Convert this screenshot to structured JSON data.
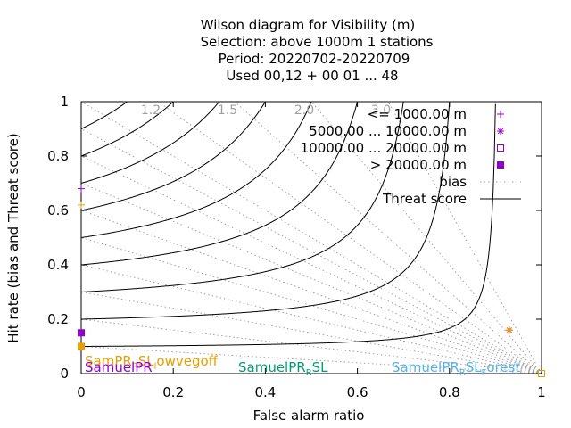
{
  "chart_data": {
    "type": "scatter",
    "title_lines": [
      "Wilson diagram  for Visibility (m)",
      "Selection: above 1000m      1 stations",
      "Period: 20220702-20220709",
      "Used  00,12  + 00 01 ... 48"
    ],
    "xlabel": "False alarm ratio",
    "ylabel": "Hit rate (bias and Threat score)",
    "xlim": [
      0,
      1
    ],
    "ylim": [
      0,
      1
    ],
    "x_ticks": [
      0,
      0.2,
      0.4,
      0.6,
      0.8,
      1
    ],
    "y_ticks": [
      0,
      0.2,
      0.4,
      0.6,
      0.8,
      1
    ],
    "x_tick_labels": [
      "0",
      "0.2",
      "0.4",
      "0.6",
      "0.8",
      "1"
    ],
    "y_tick_labels": [
      "0",
      "0.2",
      "0.4",
      "0.6",
      "0.8",
      "1"
    ],
    "bias_lines": [
      0.1,
      0.2,
      0.3,
      0.4,
      0.5,
      0.6,
      0.7,
      0.8,
      0.9,
      1.0,
      1.2,
      1.5,
      2.0,
      3.0
    ],
    "bias_labels": [
      {
        "value": 1.2,
        "text": "1.2"
      },
      {
        "value": 1.5,
        "text": "1.5"
      },
      {
        "value": 2.0,
        "text": "2.0"
      },
      {
        "value": 3.0,
        "text": "3.0"
      }
    ],
    "threat_score_lines": [
      0.1,
      0.2,
      0.3,
      0.4,
      0.5,
      0.6,
      0.7,
      0.8,
      0.9
    ],
    "legend_position": "top-right",
    "legend": [
      {
        "label": "<= 1000.00 m",
        "marker": "plus",
        "color": "#9400d3"
      },
      {
        "label": "5000.00 ... 10000.00 m",
        "marker": "star",
        "color": "#9400d3"
      },
      {
        "label": "10000.00 ... 20000.00 m",
        "marker": "open-square",
        "color": "#9400d3"
      },
      {
        "label": "> 20000.00 m",
        "marker": "filled-square",
        "color": "#9400d3"
      },
      {
        "label": "bias",
        "marker": "dotted-line",
        "color": "#a0a0a0"
      },
      {
        "label": "Threat score",
        "marker": "solid-line",
        "color": "#000000"
      }
    ],
    "series": [
      {
        "color": "#9400d3",
        "points": [
          {
            "x": 0.0,
            "y": 0.68,
            "marker": "plus"
          },
          {
            "x": 0.0,
            "y": 0.15,
            "marker": "filled-square"
          },
          {
            "x": 0.93,
            "y": 0.16,
            "marker": "star"
          },
          {
            "x": 1.0,
            "y": 0.0,
            "marker": "open-square"
          }
        ]
      },
      {
        "color": "#e69f00",
        "points": [
          {
            "x": 0.0,
            "y": 0.62,
            "marker": "plus"
          },
          {
            "x": 0.0,
            "y": 0.1,
            "marker": "filled-square"
          },
          {
            "x": 0.93,
            "y": 0.16,
            "marker": "star"
          },
          {
            "x": 1.0,
            "y": 0.0,
            "marker": "open-square"
          }
        ]
      }
    ],
    "annotations": [
      {
        "text": "SamPR",
        "sub": "R",
        "text2": "SL",
        "sub2": "l",
        "text3": "owvegoff",
        "color": "#e69f00"
      },
      {
        "text": "SamuelPR",
        "color": "#9400d3"
      },
      {
        "text": "SamuelPR",
        "sub": "R",
        "text2": "SL",
        "color": "#009e73"
      },
      {
        "text": "SamuelPR",
        "sub": "R",
        "text2": "SL",
        "sub2": "F",
        "text3": "orest",
        "color": "#56b4e9"
      }
    ]
  }
}
